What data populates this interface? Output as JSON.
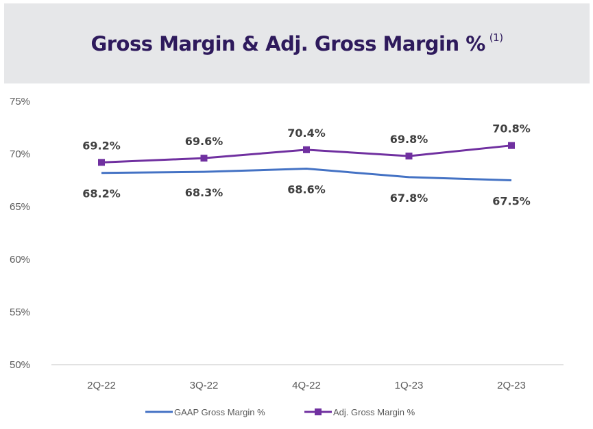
{
  "chart_data": {
    "type": "line",
    "title": "Gross Margin & Adj. Gross Margin %",
    "title_footnote": "(1)",
    "categories": [
      "2Q-22",
      "3Q-22",
      "4Q-22",
      "1Q-23",
      "2Q-23"
    ],
    "y_ticks": [
      "75%",
      "70%",
      "65%",
      "60%",
      "55%",
      "50%"
    ],
    "ylim": [
      50,
      75
    ],
    "grid": false,
    "legend_placement": "bottom",
    "series": [
      {
        "name": "GAAP Gross Margin %",
        "values": [
          68.2,
          68.3,
          68.6,
          67.8,
          67.5
        ],
        "labels": [
          "68.2%",
          "68.3%",
          "68.6%",
          "67.8%",
          "67.5%"
        ],
        "color": "#4472c4",
        "marker": "none"
      },
      {
        "name": "Adj. Gross Margin %",
        "values": [
          69.2,
          69.6,
          70.4,
          69.8,
          70.8
        ],
        "labels": [
          "69.2%",
          "69.6%",
          "70.4%",
          "69.8%",
          "70.8%"
        ],
        "color": "#7030a0",
        "marker": "square"
      }
    ]
  }
}
